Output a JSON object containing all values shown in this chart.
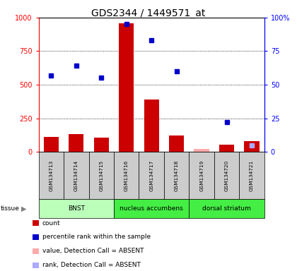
{
  "title": "GDS2344 / 1449571_at",
  "samples": [
    "GSM134713",
    "GSM134714",
    "GSM134715",
    "GSM134716",
    "GSM134717",
    "GSM134718",
    "GSM134719",
    "GSM134720",
    "GSM134721"
  ],
  "count_values": [
    110,
    130,
    105,
    960,
    390,
    120,
    20,
    55,
    80
  ],
  "count_absent": [
    false,
    false,
    false,
    false,
    false,
    false,
    true,
    false,
    false
  ],
  "rank_values": [
    57,
    64,
    55,
    95,
    83,
    60,
    null,
    22,
    5
  ],
  "rank_absent": [
    false,
    false,
    false,
    false,
    false,
    false,
    false,
    false,
    true
  ],
  "tissues": [
    {
      "label": "BNST",
      "start": 0,
      "end": 3,
      "color": "#bbffbb"
    },
    {
      "label": "nucleus accumbens",
      "start": 3,
      "end": 6,
      "color": "#44ee44"
    },
    {
      "label": "dorsal striatum",
      "start": 6,
      "end": 9,
      "color": "#44ee44"
    }
  ],
  "ylim_left": [
    0,
    1000
  ],
  "ylim_right": [
    0,
    100
  ],
  "yticks_left": [
    0,
    250,
    500,
    750,
    1000
  ],
  "yticks_right": [
    0,
    25,
    50,
    75,
    100
  ],
  "left_tick_labels": [
    "0",
    "250",
    "500",
    "750",
    "1000"
  ],
  "right_tick_labels": [
    "0",
    "25",
    "50",
    "75",
    "100%"
  ],
  "bar_color_present": "#cc0000",
  "bar_color_absent": "#ffaaaa",
  "dot_color_present": "#0000cc",
  "dot_color_absent": "#aaaaff",
  "bg_sample_box": "#cccccc",
  "legend_items": [
    {
      "color": "#cc0000",
      "label": "count"
    },
    {
      "color": "#0000cc",
      "label": "percentile rank within the sample"
    },
    {
      "color": "#ffaaaa",
      "label": "value, Detection Call = ABSENT"
    },
    {
      "color": "#aaaaff",
      "label": "rank, Detection Call = ABSENT"
    }
  ]
}
